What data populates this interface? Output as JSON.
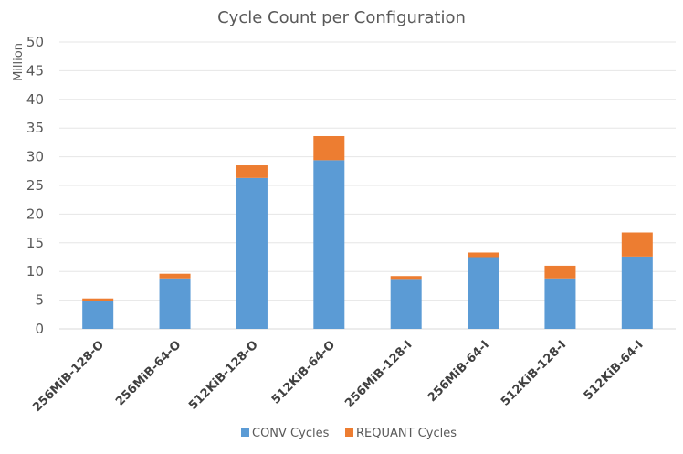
{
  "chart_data": {
    "type": "bar",
    "stacked": true,
    "title": "Cycle Count per Configuration",
    "xlabel": "",
    "ylabel": "Million",
    "ylim": [
      0,
      50
    ],
    "yticks": [
      0,
      5,
      10,
      15,
      20,
      25,
      30,
      35,
      40,
      45,
      50
    ],
    "grid": true,
    "legend_position": "bottom",
    "categories": [
      "256MiB-128-O",
      "256MiB-64-O",
      "512KiB-128-O",
      "512KiB-64-O",
      "256MiB-128-I",
      "256MiB-64-I",
      "512KiB-128-I",
      "512KiB-64-I"
    ],
    "series": [
      {
        "name": "CONV Cycles",
        "color": "#5b9bd5",
        "values": [
          4.9,
          8.8,
          26.3,
          29.4,
          8.7,
          12.5,
          8.8,
          12.6
        ]
      },
      {
        "name": "REQUANT Cycles",
        "color": "#ed7d31",
        "values": [
          0.4,
          0.8,
          2.2,
          4.2,
          0.5,
          0.8,
          2.2,
          4.2
        ]
      }
    ]
  }
}
